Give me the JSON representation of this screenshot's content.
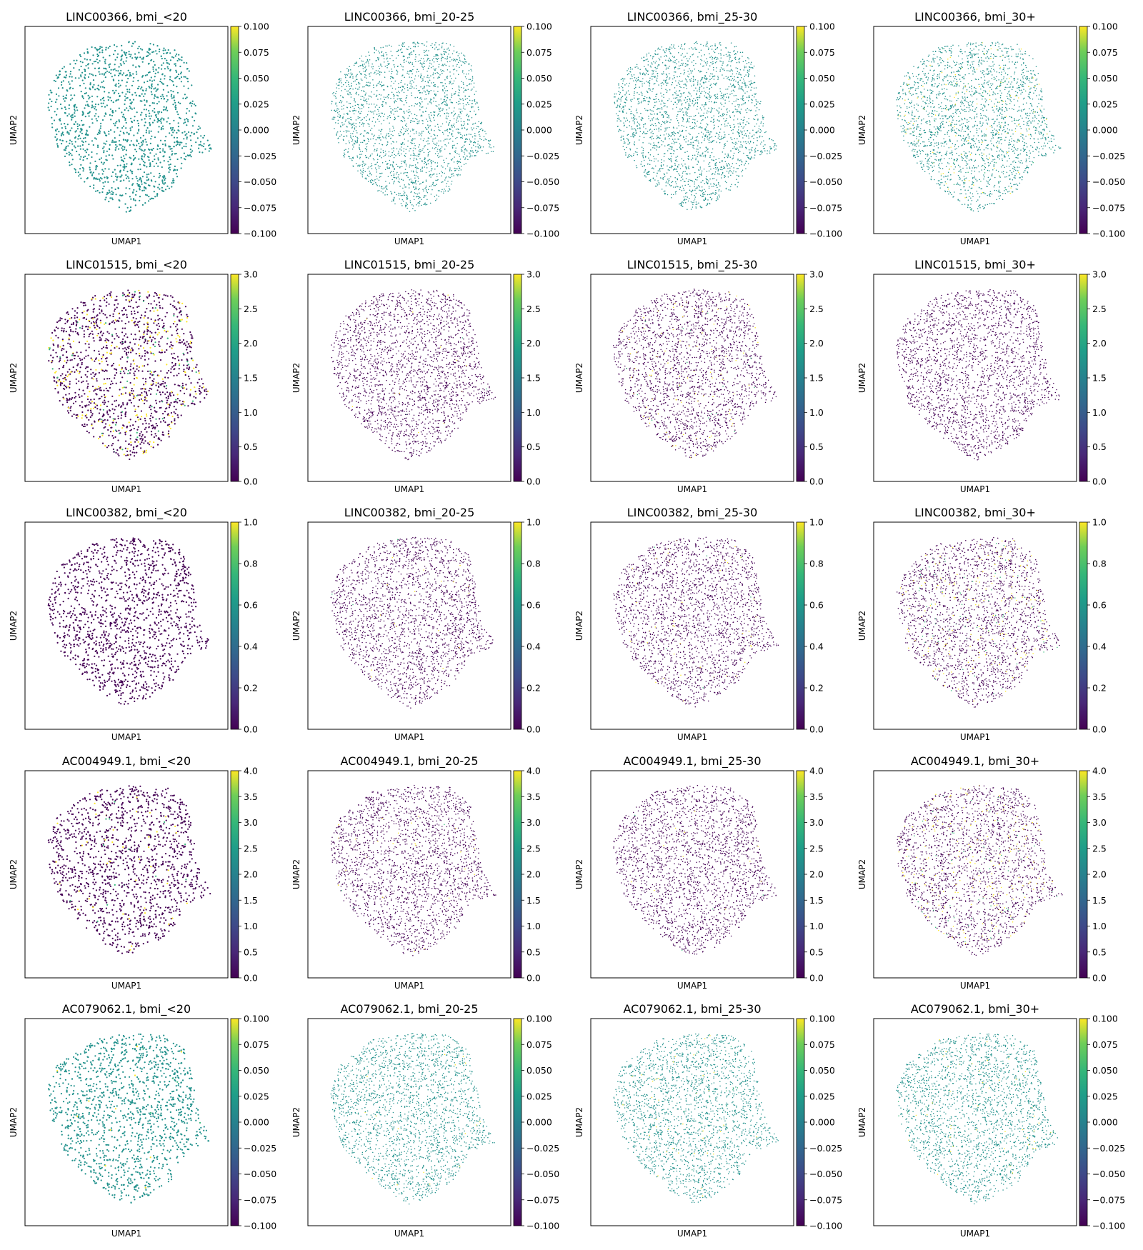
{
  "figure": {
    "panel_titles": [
      [
        "LINC00366, bmi_<20",
        "LINC00366, bmi_20-25",
        "LINC00366, bmi_25-30",
        "LINC00366, bmi_30+"
      ],
      [
        "LINC01515, bmi_<20",
        "LINC01515, bmi_20-25",
        "LINC01515, bmi_25-30",
        "LINC01515, bmi_30+"
      ],
      [
        "LINC00382, bmi_<20",
        "LINC00382, bmi_20-25",
        "LINC00382, bmi_25-30",
        "LINC00382, bmi_30+"
      ],
      [
        "AC004949.1, bmi_<20",
        "AC004949.1, bmi_20-25",
        "AC004949.1, bmi_25-30",
        "AC004949.1, bmi_30+"
      ],
      [
        "AC079062.1, bmi_<20",
        "AC079062.1, bmi_20-25",
        "AC079062.1, bmi_25-30",
        "AC079062.1, bmi_30+"
      ]
    ]
  },
  "chart_data": {
    "type": "scatter",
    "layout": "grid of UMAP embeddings, 5 genes x 4 BMI groups",
    "genes": [
      "LINC00366",
      "LINC01515",
      "LINC00382",
      "AC004949.1",
      "AC079062.1"
    ],
    "groups": [
      "bmi_<20",
      "bmi_20-25",
      "bmi_25-30",
      "bmi_30+"
    ],
    "xlabel": "UMAP1",
    "ylabel": "UMAP2",
    "colormap": "viridis",
    "colorbar_ranges": [
      [
        -0.1,
        0.1
      ],
      [
        0.0,
        3.0
      ],
      [
        0.0,
        1.0
      ],
      [
        0.0,
        4.0
      ],
      [
        -0.1,
        0.1
      ]
    ],
    "colorbar_ticks": [
      [
        "−0.100",
        "−0.075",
        "−0.050",
        "−0.025",
        "0.000",
        "0.025",
        "0.050",
        "0.075",
        "0.100"
      ],
      [
        "0.0",
        "0.5",
        "1.0",
        "1.5",
        "2.0",
        "2.5",
        "3.0"
      ],
      [
        "0.0",
        "0.2",
        "0.4",
        "0.6",
        "0.8",
        "1.0"
      ],
      [
        "0.0",
        "0.5",
        "1.0",
        "1.5",
        "2.0",
        "2.5",
        "3.0",
        "3.5",
        "4.0"
      ],
      [
        "−0.100",
        "−0.075",
        "−0.050",
        "−0.025",
        "0.000",
        "0.025",
        "0.050",
        "0.075",
        "0.100"
      ]
    ],
    "expressed_fraction": [
      [
        0.0,
        0.0,
        0.0,
        0.06
      ],
      [
        0.18,
        0.01,
        0.05,
        0.0
      ],
      [
        0.0,
        0.01,
        0.02,
        0.1
      ],
      [
        0.04,
        0.01,
        0.01,
        0.12
      ],
      [
        0.01,
        0.01,
        0.02,
        0.03
      ]
    ],
    "grid": false,
    "colors": {
      "baseline_zero_range": "#21918c",
      "baseline_positive_range": "#440154",
      "high": "#fde725",
      "mid": "#35b779"
    }
  }
}
